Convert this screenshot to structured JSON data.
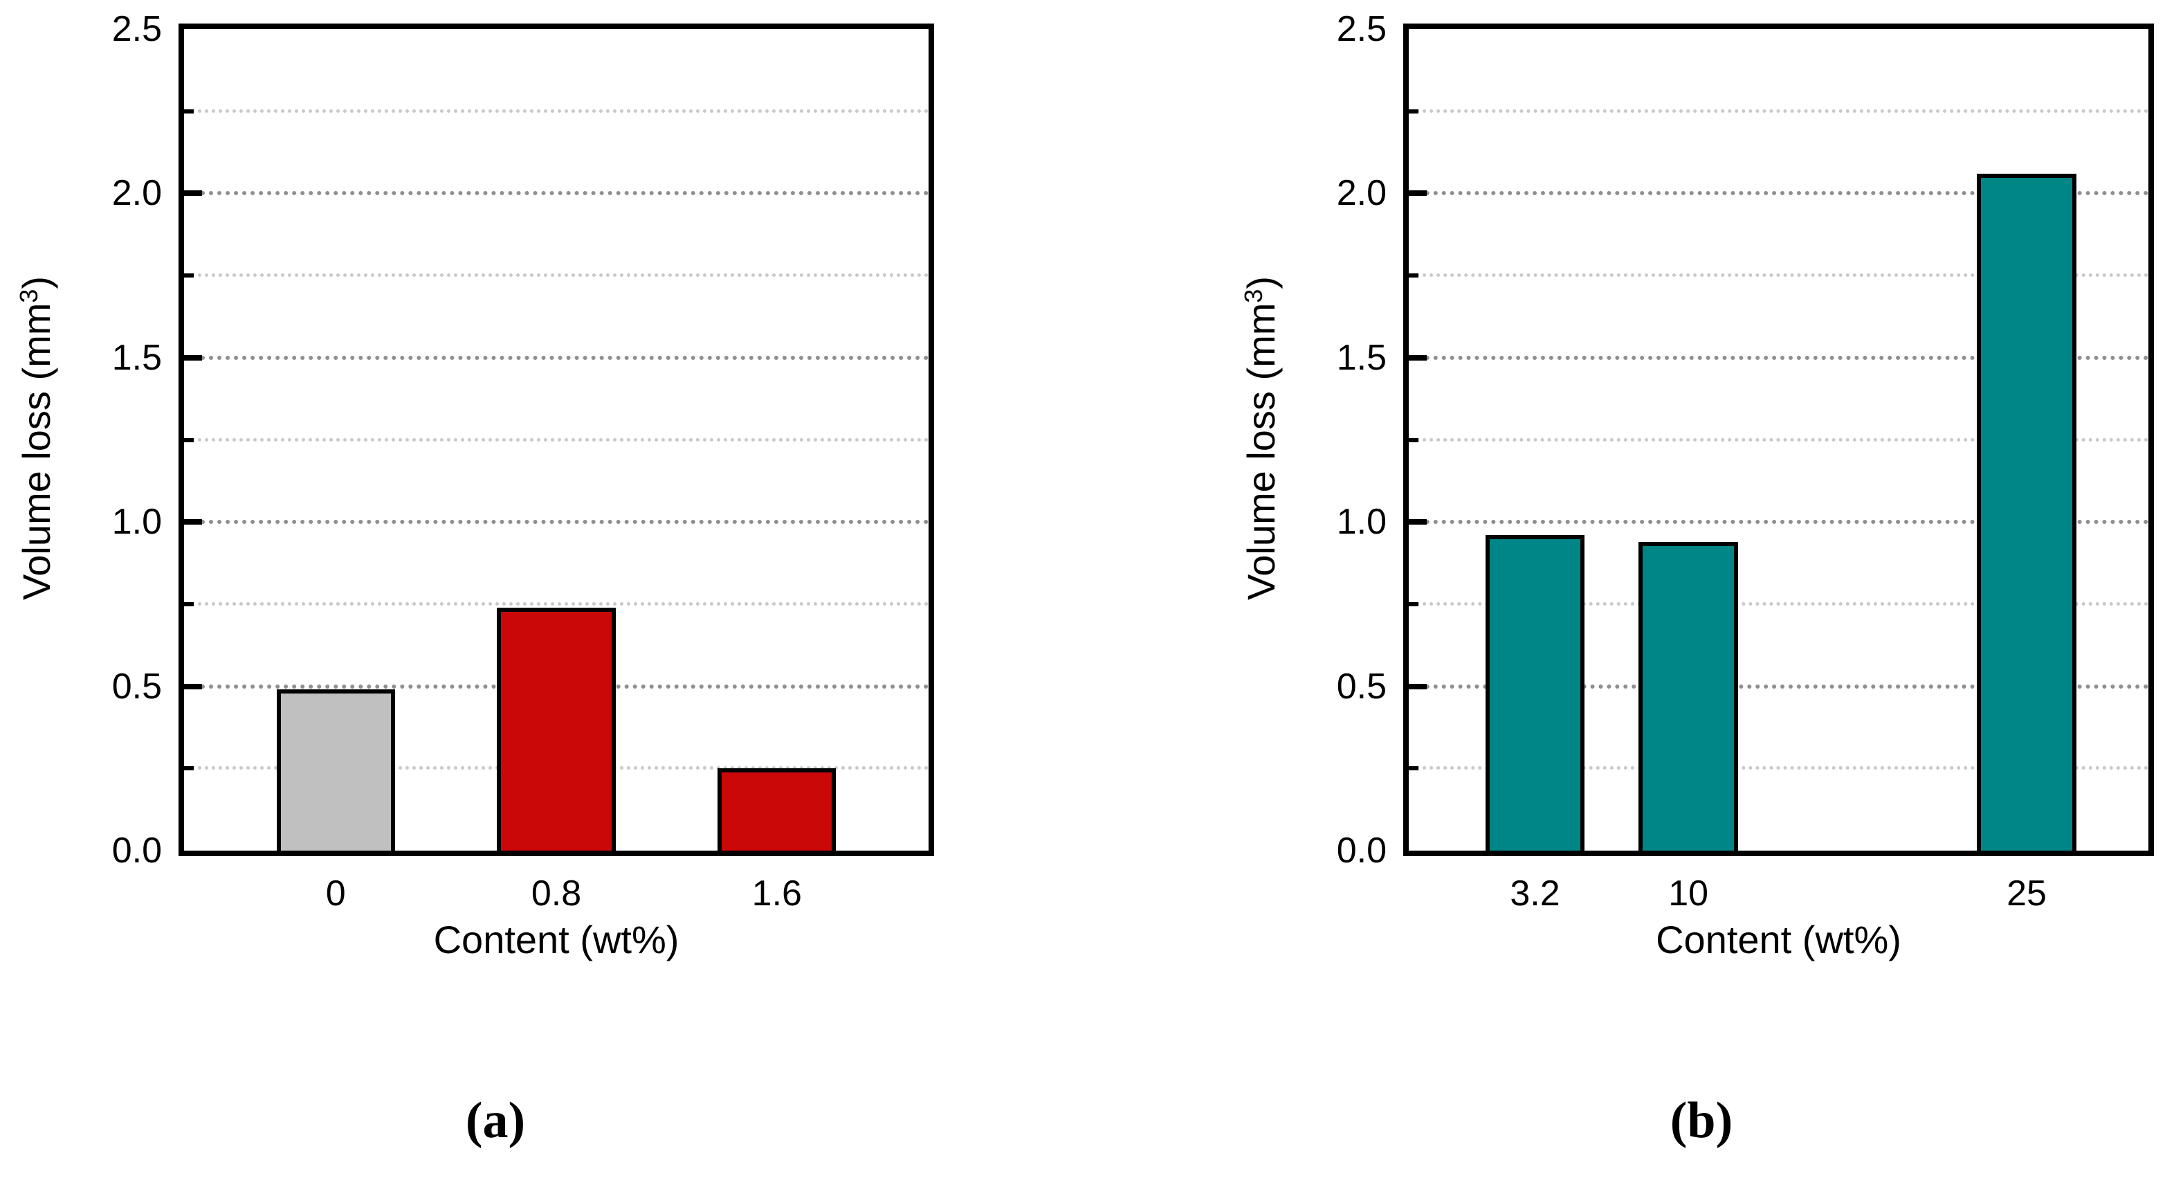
{
  "chart_data": [
    {
      "id": "a",
      "type": "bar",
      "caption": "(a)",
      "title": "",
      "xlabel": "Content (wt%)",
      "ylabel": "Volume loss (mm³)",
      "ylabel_parts": {
        "prefix": "Volume loss (mm",
        "sup": "3",
        "suffix": ")"
      },
      "categories": [
        "0",
        "0.8",
        "1.6"
      ],
      "x_values": [
        0,
        0.8,
        1.6
      ],
      "values": [
        0.49,
        0.74,
        0.25
      ],
      "bar_colors": [
        "#c0c0c0",
        "#ca0808",
        "#ca0808"
      ],
      "bar_width_x": 0.43,
      "x_range": [
        -0.55,
        2.15
      ],
      "ylim": [
        0,
        2.5
      ],
      "ytick_labels": [
        "0.0",
        "0.5",
        "1.0",
        "1.5",
        "2.0",
        "2.5"
      ],
      "ytick_major_step": 0.5,
      "ytick_minor_step": 0.25,
      "grid": "horizontal dotted, minor every 0.25, major every 0.5",
      "legend": "none"
    },
    {
      "id": "b",
      "type": "bar",
      "caption": "(b)",
      "title": "",
      "xlabel": "Content (wt%)",
      "ylabel": "Volume loss (mm³)",
      "ylabel_parts": {
        "prefix": "Volume loss (mm",
        "sup": "3",
        "suffix": ")"
      },
      "categories": [
        "3.2",
        "10",
        "25"
      ],
      "x_values": [
        3.2,
        10,
        25
      ],
      "values": [
        0.96,
        0.94,
        2.06
      ],
      "bar_colors": [
        "#008686",
        "#008686",
        "#008686"
      ],
      "bar_width_x": 4.4,
      "x_range": [
        -2.4,
        30.4
      ],
      "ylim": [
        0,
        2.5
      ],
      "ytick_labels": [
        "0.0",
        "0.5",
        "1.0",
        "1.5",
        "2.0",
        "2.5"
      ],
      "ytick_major_step": 0.5,
      "ytick_minor_step": 0.25,
      "grid": "horizontal dotted, minor every 0.25, major every 0.5",
      "legend": "none"
    }
  ]
}
